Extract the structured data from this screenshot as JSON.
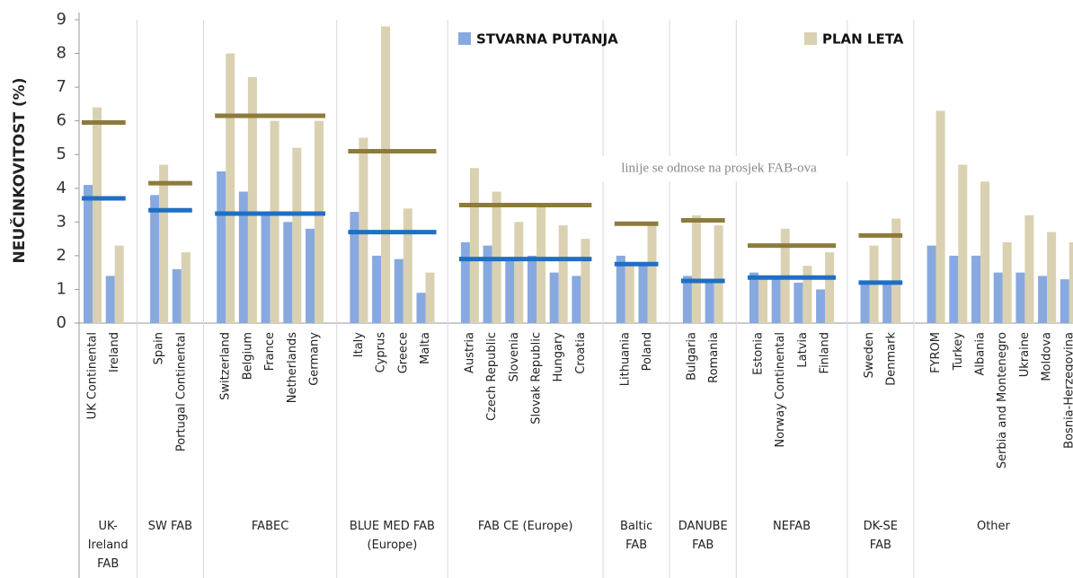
{
  "chart_data": {
    "type": "bar",
    "y_label": "NEUČINKOVITOST (%)",
    "annotation": "linije se odnose na prosjek FAB-ova",
    "ylim": [
      0,
      9
    ],
    "yticks": [
      0,
      1,
      2,
      3,
      4,
      5,
      6,
      7,
      8,
      9
    ],
    "series": [
      {
        "name": "STVARNA PUTANJA",
        "color": "#87a9df",
        "average_color": "#1f6fc4"
      },
      {
        "name": "PLAN LETA",
        "color": "#d9d1b1",
        "average_color": "#8c7b3c"
      }
    ],
    "groups": [
      {
        "label": "UK-Ireland FAB",
        "categories": [
          "UK Continental",
          "Ireland"
        ],
        "actual": [
          4.1,
          1.4
        ],
        "plan": [
          6.4,
          2.3
        ],
        "averages": [
          3.7,
          5.95
        ]
      },
      {
        "label": "SW FAB",
        "categories": [
          "Spain",
          "Portugal Continental"
        ],
        "actual": [
          3.8,
          1.6
        ],
        "plan": [
          4.7,
          2.1
        ],
        "averages": [
          3.35,
          4.15
        ]
      },
      {
        "label": "FABEC",
        "categories": [
          "Switzerland",
          "Belgium",
          "France",
          "Netherlands",
          "Germany"
        ],
        "actual": [
          4.5,
          3.9,
          3.3,
          3.0,
          2.8
        ],
        "plan": [
          8.0,
          7.3,
          6.0,
          5.2,
          6.0
        ],
        "averages": [
          3.25,
          6.15
        ]
      },
      {
        "label": "BLUE MED FAB (Europe)",
        "categories": [
          "Italy",
          "Cyprus",
          "Greece",
          "Malta"
        ],
        "actual": [
          3.3,
          2.0,
          1.9,
          0.9
        ],
        "plan": [
          5.5,
          8.8,
          3.4,
          1.5
        ],
        "averages": [
          2.7,
          5.1
        ]
      },
      {
        "label": "FAB CE (Europe)",
        "categories": [
          "Austria",
          "Czech Republic",
          "Slovenia",
          "Slovak Republic",
          "Hungary",
          "Croatia"
        ],
        "actual": [
          2.4,
          2.3,
          1.9,
          2.0,
          1.5,
          1.4
        ],
        "plan": [
          4.6,
          3.9,
          3.0,
          3.5,
          2.9,
          2.5
        ],
        "averages": [
          1.9,
          3.5
        ]
      },
      {
        "label": "Baltic FAB",
        "categories": [
          "Lithuania",
          "Poland"
        ],
        "actual": [
          2.0,
          1.8
        ],
        "plan": [
          1.7,
          3.0
        ],
        "averages": [
          1.75,
          2.95
        ]
      },
      {
        "label": "DANUBE FAB",
        "categories": [
          "Bulgaria",
          "Romania"
        ],
        "actual": [
          1.4,
          1.2
        ],
        "plan": [
          3.2,
          2.9
        ],
        "averages": [
          1.25,
          3.05
        ]
      },
      {
        "label": "NEFAB",
        "categories": [
          "Estonia",
          "Norway Continental",
          "Latvia",
          "Finland"
        ],
        "actual": [
          1.5,
          1.4,
          1.2,
          1.0
        ],
        "plan": [
          1.4,
          2.8,
          1.7,
          2.1
        ],
        "averages": [
          1.35,
          2.3
        ]
      },
      {
        "label": "DK-SE FAB",
        "categories": [
          "Sweden",
          "Denmark"
        ],
        "actual": [
          1.2,
          1.2
        ],
        "plan": [
          2.3,
          3.1
        ],
        "averages": [
          1.2,
          2.6
        ]
      },
      {
        "label": "Other",
        "categories": [
          "FYROM",
          "Turkey",
          "Albania",
          "Serbia and Montenegro",
          "Ukraine",
          "Moldova",
          "Bosnia-Herzegovina"
        ],
        "actual": [
          2.3,
          2.0,
          2.0,
          1.5,
          1.5,
          1.4,
          1.3
        ],
        "plan": [
          6.3,
          4.7,
          4.2,
          2.4,
          3.2,
          2.7,
          2.4
        ]
      }
    ]
  }
}
